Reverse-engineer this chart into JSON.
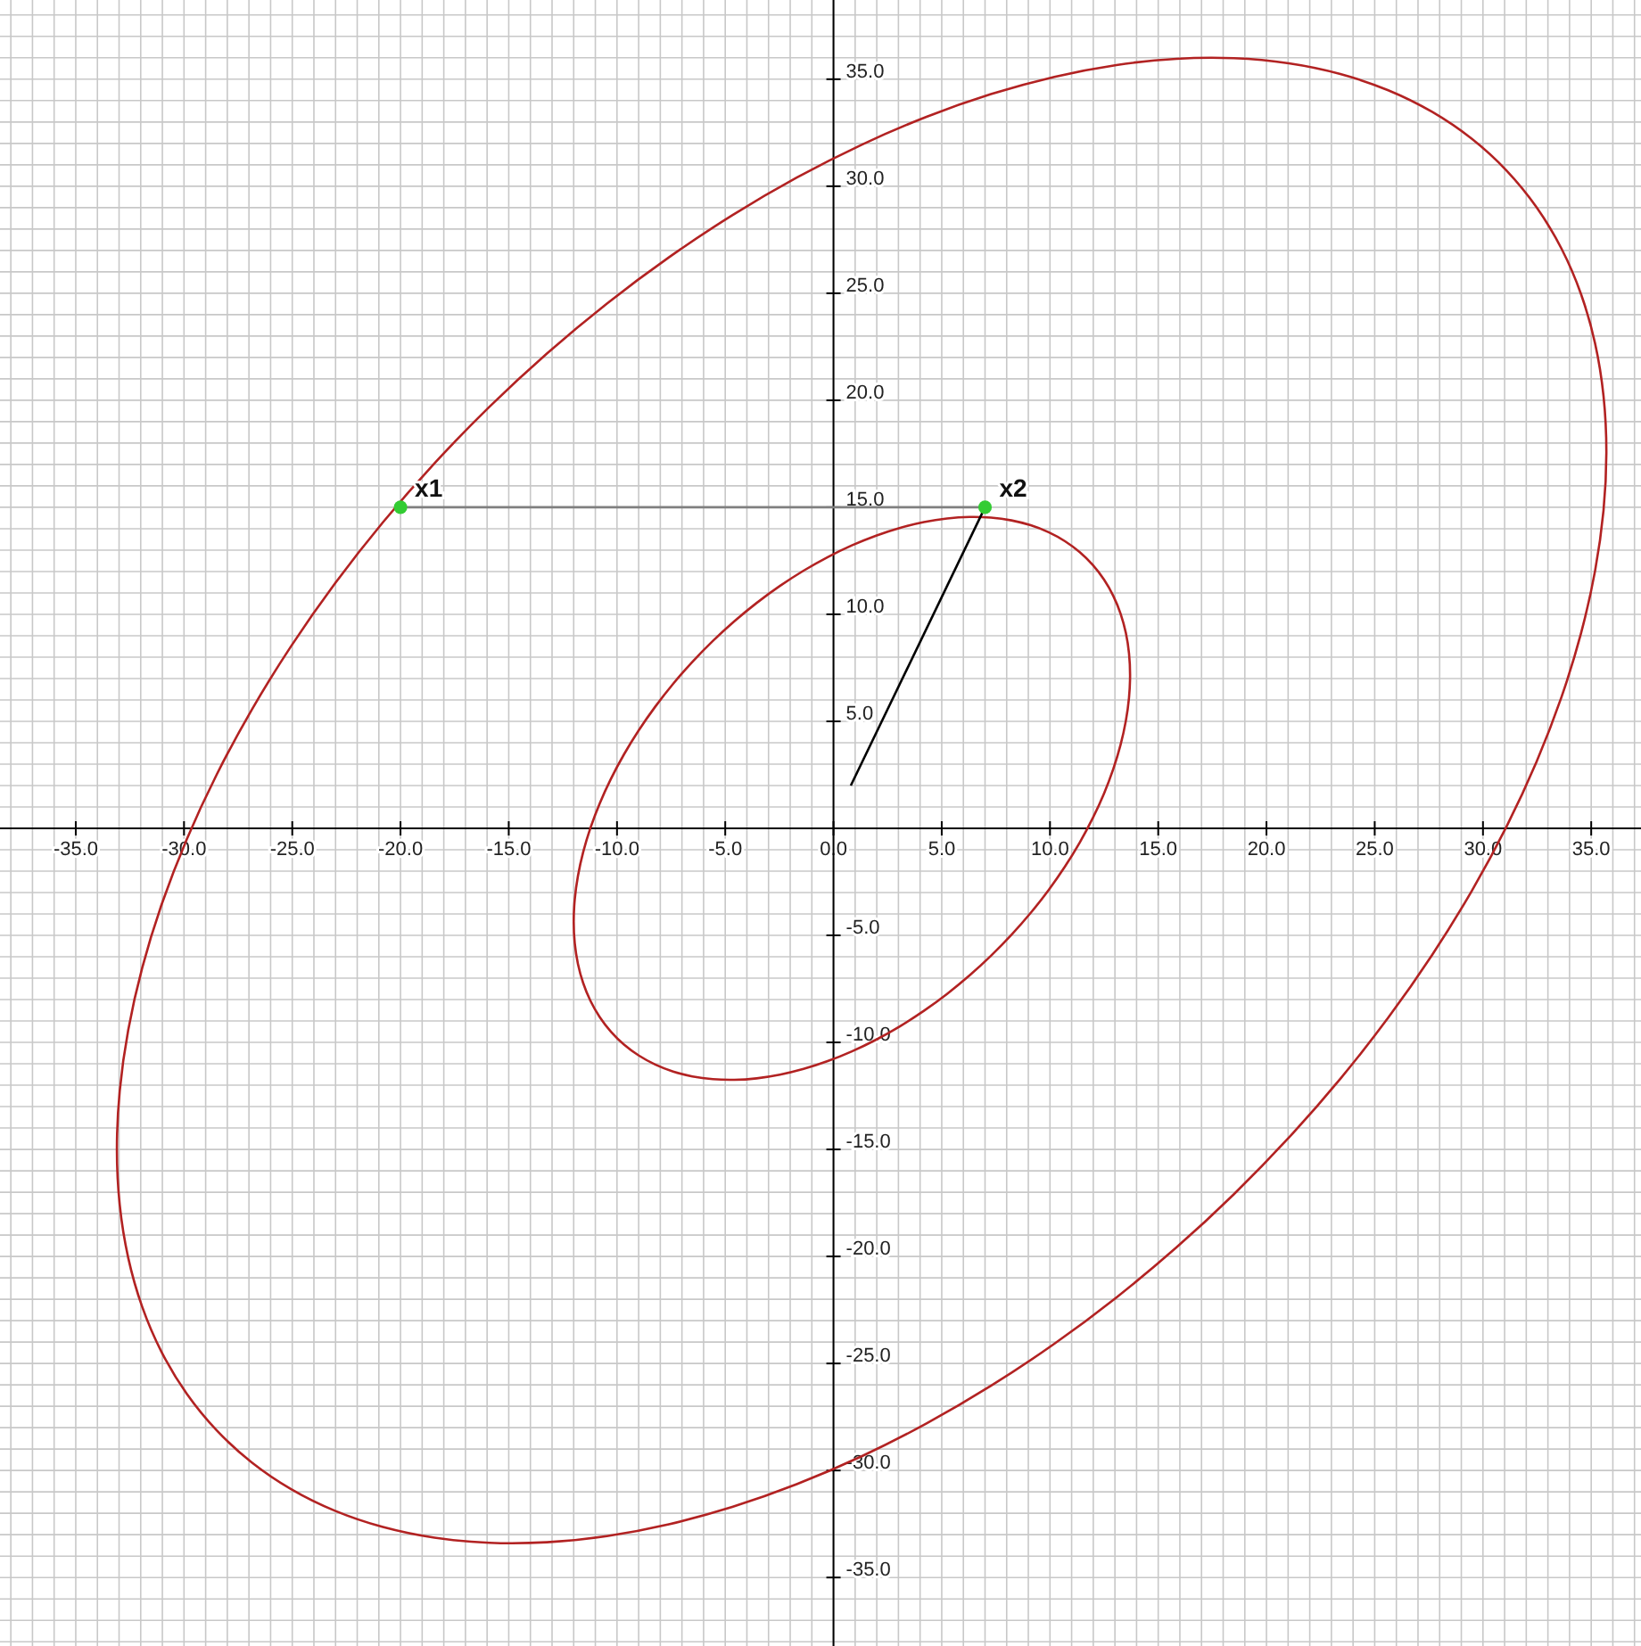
{
  "chart_data": {
    "type": "line",
    "xlim": [
      -38.5,
      37.3
    ],
    "ylim": [
      -38.2,
      38.7
    ],
    "grid": true,
    "line_style": "solid",
    "xticks": [
      {
        "value": -38,
        "label": null
      },
      {
        "value": -37,
        "label": null
      },
      {
        "value": -36,
        "label": null
      },
      {
        "value": -35,
        "label": "-35.0"
      },
      {
        "value": -34,
        "label": null
      },
      {
        "value": -33,
        "label": null
      },
      {
        "value": -32,
        "label": null
      },
      {
        "value": -31,
        "label": null
      },
      {
        "value": -30,
        "label": "-30.0"
      },
      {
        "value": -29,
        "label": null
      },
      {
        "value": -28,
        "label": null
      },
      {
        "value": -27,
        "label": null
      },
      {
        "value": -26,
        "label": null
      },
      {
        "value": -25,
        "label": "-25.0"
      },
      {
        "value": -24,
        "label": null
      },
      {
        "value": -23,
        "label": null
      },
      {
        "value": -22,
        "label": null
      },
      {
        "value": -21,
        "label": null
      },
      {
        "value": -20,
        "label": "-20.0"
      },
      {
        "value": -19,
        "label": null
      },
      {
        "value": -18,
        "label": null
      },
      {
        "value": -17,
        "label": null
      },
      {
        "value": -16,
        "label": null
      },
      {
        "value": -15,
        "label": "-15.0"
      },
      {
        "value": -14,
        "label": null
      },
      {
        "value": -13,
        "label": null
      },
      {
        "value": -12,
        "label": null
      },
      {
        "value": -11,
        "label": null
      },
      {
        "value": -10,
        "label": "-10.0"
      },
      {
        "value": -9,
        "label": null
      },
      {
        "value": -8,
        "label": null
      },
      {
        "value": -7,
        "label": null
      },
      {
        "value": -6,
        "label": null
      },
      {
        "value": -5,
        "label": "-5.0"
      },
      {
        "value": -4,
        "label": null
      },
      {
        "value": -3,
        "label": null
      },
      {
        "value": -2,
        "label": null
      },
      {
        "value": -1,
        "label": null
      },
      {
        "value": 0,
        "label": "0.0"
      },
      {
        "value": 1,
        "label": null
      },
      {
        "value": 2,
        "label": null
      },
      {
        "value": 3,
        "label": null
      },
      {
        "value": 4,
        "label": null
      },
      {
        "value": 5,
        "label": "5.0"
      },
      {
        "value": 6,
        "label": null
      },
      {
        "value": 7,
        "label": null
      },
      {
        "value": 8,
        "label": null
      },
      {
        "value": 9,
        "label": null
      },
      {
        "value": 10,
        "label": "10.0"
      },
      {
        "value": 11,
        "label": null
      },
      {
        "value": 12,
        "label": null
      },
      {
        "value": 13,
        "label": null
      },
      {
        "value": 14,
        "label": null
      },
      {
        "value": 15,
        "label": "15.0"
      },
      {
        "value": 16,
        "label": null
      },
      {
        "value": 17,
        "label": null
      },
      {
        "value": 18,
        "label": null
      },
      {
        "value": 19,
        "label": null
      },
      {
        "value": 20,
        "label": "20.0"
      },
      {
        "value": 21,
        "label": null
      },
      {
        "value": 22,
        "label": null
      },
      {
        "value": 23,
        "label": null
      },
      {
        "value": 24,
        "label": null
      },
      {
        "value": 25,
        "label": "25.0"
      },
      {
        "value": 26,
        "label": null
      },
      {
        "value": 27,
        "label": null
      },
      {
        "value": 28,
        "label": null
      },
      {
        "value": 29,
        "label": null
      },
      {
        "value": 30,
        "label": "30.0"
      },
      {
        "value": 31,
        "label": null
      },
      {
        "value": 32,
        "label": null
      },
      {
        "value": 33,
        "label": null
      },
      {
        "value": 34,
        "label": null
      },
      {
        "value": 35,
        "label": "35.0"
      },
      {
        "value": 36,
        "label": null
      },
      {
        "value": 37,
        "label": null
      }
    ],
    "yticks": [
      {
        "value": -38,
        "label": null
      },
      {
        "value": -37,
        "label": null
      },
      {
        "value": -36,
        "label": null
      },
      {
        "value": -35,
        "label": "-35.0"
      },
      {
        "value": -34,
        "label": null
      },
      {
        "value": -33,
        "label": null
      },
      {
        "value": -32,
        "label": null
      },
      {
        "value": -31,
        "label": null
      },
      {
        "value": -30,
        "label": "-30.0"
      },
      {
        "value": -29,
        "label": null
      },
      {
        "value": -28,
        "label": null
      },
      {
        "value": -27,
        "label": null
      },
      {
        "value": -26,
        "label": null
      },
      {
        "value": -25,
        "label": "-25.0"
      },
      {
        "value": -24,
        "label": null
      },
      {
        "value": -23,
        "label": null
      },
      {
        "value": -22,
        "label": null
      },
      {
        "value": -21,
        "label": null
      },
      {
        "value": -20,
        "label": "-20.0"
      },
      {
        "value": -19,
        "label": null
      },
      {
        "value": -18,
        "label": null
      },
      {
        "value": -17,
        "label": null
      },
      {
        "value": -16,
        "label": null
      },
      {
        "value": -15,
        "label": "-15.0"
      },
      {
        "value": -14,
        "label": null
      },
      {
        "value": -13,
        "label": null
      },
      {
        "value": -12,
        "label": null
      },
      {
        "value": -11,
        "label": null
      },
      {
        "value": -10,
        "label": "-10.0"
      },
      {
        "value": -9,
        "label": null
      },
      {
        "value": -8,
        "label": null
      },
      {
        "value": -7,
        "label": null
      },
      {
        "value": -6,
        "label": null
      },
      {
        "value": -5,
        "label": "-5.0"
      },
      {
        "value": -4,
        "label": null
      },
      {
        "value": -3,
        "label": null
      },
      {
        "value": -2,
        "label": null
      },
      {
        "value": -1,
        "label": null
      },
      {
        "value": 1,
        "label": null
      },
      {
        "value": 2,
        "label": null
      },
      {
        "value": 3,
        "label": null
      },
      {
        "value": 4,
        "label": null
      },
      {
        "value": 5,
        "label": "5.0"
      },
      {
        "value": 6,
        "label": null
      },
      {
        "value": 7,
        "label": null
      },
      {
        "value": 8,
        "label": null
      },
      {
        "value": 9,
        "label": null
      },
      {
        "value": 10,
        "label": "10.0"
      },
      {
        "value": 11,
        "label": null
      },
      {
        "value": 12,
        "label": null
      },
      {
        "value": 13,
        "label": null
      },
      {
        "value": 14,
        "label": null
      },
      {
        "value": 15,
        "label": "15.0"
      },
      {
        "value": 16,
        "label": null
      },
      {
        "value": 17,
        "label": null
      },
      {
        "value": 18,
        "label": null
      },
      {
        "value": 19,
        "label": null
      },
      {
        "value": 20,
        "label": "20.0"
      },
      {
        "value": 21,
        "label": null
      },
      {
        "value": 22,
        "label": null
      },
      {
        "value": 23,
        "label": null
      },
      {
        "value": 24,
        "label": null
      },
      {
        "value": 25,
        "label": "25.0"
      },
      {
        "value": 26,
        "label": null
      },
      {
        "value": 27,
        "label": null
      },
      {
        "value": 28,
        "label": null
      },
      {
        "value": 29,
        "label": null
      },
      {
        "value": 30,
        "label": "30.0"
      },
      {
        "value": 31,
        "label": null
      },
      {
        "value": 32,
        "label": null
      },
      {
        "value": 33,
        "label": null
      },
      {
        "value": 34,
        "label": null
      },
      {
        "value": 35,
        "label": "35.0"
      },
      {
        "value": 36,
        "label": null
      },
      {
        "value": 37,
        "label": null
      },
      {
        "value": 38,
        "label": null
      }
    ],
    "series": [
      {
        "color": "#808080",
        "x": [
          -20,
          7
        ],
        "values": [
          15,
          15
        ]
      },
      {
        "color": "#000000",
        "x": [
          7,
          0.8
        ],
        "values": [
          15,
          2
        ]
      },
      {
        "type": "scatter",
        "marker": "circle",
        "color": "#33cc33",
        "x": [
          -20,
          7
        ],
        "values": [
          15,
          15
        ]
      }
    ],
    "annotations": [
      {
        "text": "x1",
        "x": -20,
        "y": 15
      },
      {
        "text": "x2",
        "x": 7,
        "y": 15
      }
    ]
  }
}
